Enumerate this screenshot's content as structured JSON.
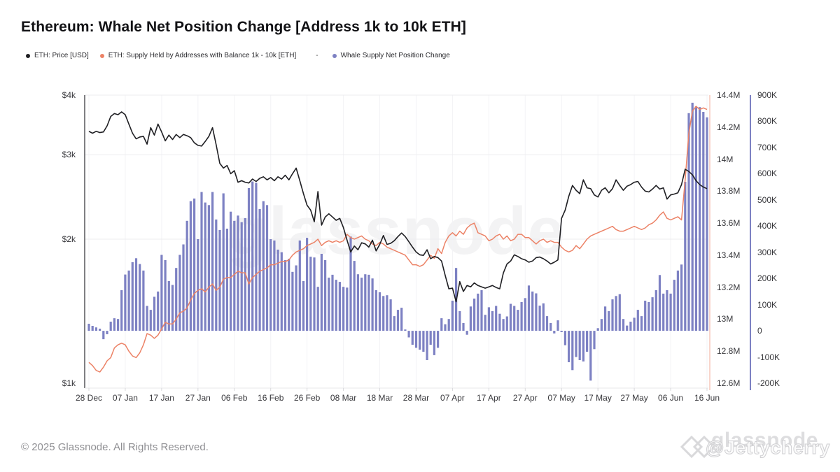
{
  "header": {
    "title": "Ethereum: Whale Net Position Change [Address 1k to 10k ETH]"
  },
  "legend": {
    "items": [
      {
        "label": "ETH: Price [USD]",
        "color": "#1f1f23"
      },
      {
        "label": "ETH: Supply Held by Addresses with Balance 1k - 10k [ETH]",
        "color": "#ec8266"
      },
      {
        "label": "Whale Supply Net Position Change",
        "color": "#7d81c3"
      }
    ],
    "separator": "-"
  },
  "footer": {
    "copyright": "© 2025 Glassnode. All Rights Reserved."
  },
  "watermarks": {
    "center": "glassnode",
    "brand": "glassnode",
    "handle": "@Jettycherry",
    "logo_icon": "glassnode-diamond-logo"
  },
  "axes": {
    "price": {
      "side": "left",
      "scale": "log",
      "ticks": [
        {
          "label": "$4k",
          "value": 4000
        },
        {
          "label": "$3k",
          "value": 3000
        },
        {
          "label": "$2k",
          "value": 2000
        },
        {
          "label": "$1k",
          "value": 1000
        }
      ]
    },
    "supply": {
      "side": "right",
      "scale": "linear",
      "max": 14.4,
      "min": 12.6,
      "ticks": [
        {
          "label": "14.4M",
          "value": 14.4
        },
        {
          "label": "14.2M",
          "value": 14.2
        },
        {
          "label": "14M",
          "value": 14.0
        },
        {
          "label": "13.8M",
          "value": 13.8
        },
        {
          "label": "13.6M",
          "value": 13.6
        },
        {
          "label": "13.4M",
          "value": 13.4
        },
        {
          "label": "13.2M",
          "value": 13.2
        },
        {
          "label": "13M",
          "value": 13.0
        },
        {
          "label": "12.8M",
          "value": 12.8
        },
        {
          "label": "12.6M",
          "value": 12.6
        }
      ]
    },
    "net": {
      "side": "right-outer",
      "scale": "linear",
      "max": 900,
      "min": -200,
      "ticks": [
        {
          "label": "900K",
          "value": 900
        },
        {
          "label": "800K",
          "value": 800
        },
        {
          "label": "700K",
          "value": 700
        },
        {
          "label": "600K",
          "value": 600
        },
        {
          "label": "500K",
          "value": 500
        },
        {
          "label": "400K",
          "value": 400
        },
        {
          "label": "300K",
          "value": 300
        },
        {
          "label": "200K",
          "value": 200
        },
        {
          "label": "100K",
          "value": 100
        },
        {
          "label": "0",
          "value": 0
        },
        {
          "label": "-100K",
          "value": -100
        },
        {
          "label": "-200K",
          "value": -200
        }
      ]
    },
    "x": {
      "ticks": [
        {
          "label": "28 Dec",
          "day": 0
        },
        {
          "label": "07 Jan",
          "day": 10
        },
        {
          "label": "17 Jan",
          "day": 20
        },
        {
          "label": "27 Jan",
          "day": 30
        },
        {
          "label": "06 Feb",
          "day": 40
        },
        {
          "label": "16 Feb",
          "day": 50
        },
        {
          "label": "26 Feb",
          "day": 60
        },
        {
          "label": "08 Mar",
          "day": 70
        },
        {
          "label": "18 Mar",
          "day": 80
        },
        {
          "label": "28 Mar",
          "day": 90
        },
        {
          "label": "07 Apr",
          "day": 100
        },
        {
          "label": "17 Apr",
          "day": 110
        },
        {
          "label": "27 Apr",
          "day": 120
        },
        {
          "label": "07 May",
          "day": 130
        },
        {
          "label": "17 May",
          "day": 140
        },
        {
          "label": "27 May",
          "day": 150
        },
        {
          "label": "06 Jun",
          "day": 160
        },
        {
          "label": "16 Jun",
          "day": 170
        }
      ]
    }
  },
  "chart_data": {
    "type": "mixed",
    "x_start_label": "28 Dec",
    "x_end_label": "16 Jun",
    "x_days": 171,
    "grid": "light",
    "legend_position": "top-left",
    "series": [
      {
        "name": "ETH: Price [USD]",
        "type": "line",
        "axis": "price",
        "color": "#1f1f23",
        "values": [
          3360,
          3330,
          3360,
          3340,
          3350,
          3450,
          3610,
          3660,
          3640,
          3690,
          3640,
          3480,
          3330,
          3240,
          3270,
          3280,
          3160,
          3420,
          3300,
          3480,
          3350,
          3210,
          3300,
          3230,
          3310,
          3260,
          3310,
          3290,
          3260,
          3180,
          3140,
          3130,
          3200,
          3280,
          3420,
          3150,
          2880,
          2815,
          2850,
          2740,
          2780,
          2630,
          2650,
          2630,
          2620,
          2670,
          2640,
          2680,
          2700,
          2660,
          2690,
          2650,
          2700,
          2670,
          2720,
          2660,
          2740,
          2815,
          2650,
          2490,
          2355,
          2300,
          2175,
          2515,
          2140,
          2225,
          2260,
          2225,
          2190,
          2210,
          2115,
          1990,
          1880,
          1935,
          1900,
          1965,
          1955,
          1925,
          1990,
          1890,
          1950,
          2035,
          1950,
          1960,
          1985,
          2025,
          2060,
          2025,
          1975,
          1925,
          1880,
          1855,
          1850,
          1900,
          1820,
          1840,
          1830,
          1800,
          1680,
          1575,
          1580,
          1480,
          1630,
          1555,
          1600,
          1590,
          1620,
          1600,
          1590,
          1580,
          1590,
          1600,
          1585,
          1575,
          1700,
          1775,
          1800,
          1855,
          1840,
          1820,
          1810,
          1790,
          1800,
          1830,
          1835,
          1820,
          1800,
          1775,
          1790,
          1810,
          2210,
          2300,
          2460,
          2590,
          2530,
          2490,
          2660,
          2560,
          2550,
          2475,
          2450,
          2530,
          2560,
          2500,
          2550,
          2660,
          2590,
          2530,
          2580,
          2600,
          2630,
          2640,
          2570,
          2520,
          2510,
          2545,
          2590,
          2545,
          2560,
          2425,
          2475,
          2485,
          2500,
          2600,
          2800,
          2770,
          2725,
          2650,
          2600,
          2570,
          2550
        ]
      },
      {
        "name": "ETH: Supply Held by Addresses with Balance 1k - 10k [ETH]",
        "type": "line",
        "axis": "supply",
        "color": "#ec8266",
        "values": [
          12.73,
          12.71,
          12.68,
          12.67,
          12.7,
          12.74,
          12.76,
          12.82,
          12.84,
          12.85,
          12.84,
          12.8,
          12.77,
          12.76,
          12.79,
          12.84,
          12.91,
          12.9,
          12.88,
          12.9,
          12.94,
          12.98,
          12.97,
          12.97,
          13.0,
          13.04,
          13.05,
          13.07,
          13.12,
          13.16,
          13.18,
          13.19,
          13.17,
          13.2,
          13.22,
          13.18,
          13.2,
          13.25,
          13.26,
          13.26,
          13.28,
          13.3,
          13.29,
          13.29,
          13.22,
          13.26,
          13.28,
          13.3,
          13.31,
          13.32,
          13.34,
          13.34,
          13.35,
          13.36,
          13.36,
          13.37,
          13.4,
          13.42,
          13.43,
          13.44,
          13.46,
          13.47,
          13.48,
          13.5,
          13.46,
          13.48,
          13.49,
          13.48,
          13.49,
          13.48,
          13.49,
          13.53,
          13.51,
          13.5,
          13.51,
          13.52,
          13.5,
          13.49,
          13.47,
          13.46,
          13.48,
          13.47,
          13.45,
          13.44,
          13.43,
          13.42,
          13.41,
          13.4,
          13.37,
          13.34,
          13.34,
          13.33,
          13.34,
          13.37,
          13.4,
          13.38,
          13.44,
          13.41,
          13.48,
          13.52,
          13.54,
          13.52,
          13.55,
          13.53,
          13.57,
          13.59,
          13.6,
          13.54,
          13.53,
          13.52,
          13.49,
          13.5,
          13.52,
          13.53,
          13.5,
          13.52,
          13.49,
          13.5,
          13.53,
          13.53,
          13.51,
          13.51,
          13.49,
          13.47,
          13.49,
          13.5,
          13.48,
          13.49,
          13.48,
          13.48,
          13.45,
          13.43,
          13.42,
          13.43,
          13.46,
          13.44,
          13.47,
          13.5,
          13.52,
          13.53,
          13.54,
          13.55,
          13.56,
          13.57,
          13.58,
          13.56,
          13.55,
          13.55,
          13.56,
          13.57,
          13.58,
          13.57,
          13.56,
          13.57,
          13.59,
          13.6,
          13.62,
          13.65,
          13.67,
          13.63,
          13.62,
          13.63,
          13.64,
          13.62,
          13.87,
          14.16,
          14.3,
          14.33,
          14.31,
          14.32,
          14.31
        ]
      },
      {
        "name": "Whale Supply Net Position Change",
        "type": "bar",
        "axis": "net",
        "color": "#7d81c3",
        "values": [
          27,
          19,
          13,
          8,
          -32,
          -13,
          35,
          48,
          45,
          155,
          215,
          230,
          262,
          277,
          255,
          230,
          95,
          80,
          130,
          150,
          290,
          270,
          190,
          175,
          240,
          290,
          330,
          420,
          495,
          505,
          350,
          530,
          490,
          480,
          530,
          425,
          385,
          525,
          390,
          455,
          420,
          440,
          415,
          430,
          545,
          570,
          565,
          465,
          495,
          480,
          350,
          345,
          310,
          300,
          270,
          275,
          225,
          250,
          345,
          190,
          355,
          283,
          280,
          168,
          294,
          270,
          203,
          214,
          195,
          187,
          168,
          165,
          360,
          267,
          216,
          203,
          216,
          214,
          200,
          155,
          147,
          133,
          136,
          120,
          56,
          80,
          88,
          5,
          -25,
          -53,
          -65,
          -72,
          -80,
          -112,
          -53,
          -93,
          -65,
          48,
          25,
          45,
          115,
          240,
          75,
          30,
          -15,
          93,
          123,
          142,
          155,
          61,
          90,
          75,
          95,
          65,
          45,
          55,
          103,
          95,
          80,
          110,
          125,
          173,
          150,
          143,
          96,
          105,
          56,
          30,
          -10,
          40,
          -5,
          -55,
          -120,
          -150,
          -100,
          -112,
          -117,
          -80,
          -190,
          -70,
          10,
          45,
          93,
          75,
          120,
          133,
          140,
          45,
          20,
          35,
          50,
          80,
          56,
          115,
          110,
          128,
          155,
          213,
          142,
          155,
          142,
          195,
          230,
          253,
          569,
          831,
          871,
          857,
          854,
          836,
          815
        ]
      }
    ]
  }
}
